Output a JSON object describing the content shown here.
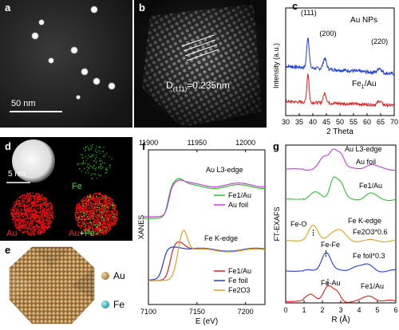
{
  "panels": {
    "a": {
      "label": "a",
      "scale": "50 nm"
    },
    "b": {
      "label": "b",
      "annotation_main": "D",
      "annotation_sub": "(111)",
      "annotation_value": "=0.235nm"
    },
    "c": {
      "label": "c"
    },
    "d": {
      "label": "d",
      "scale": "5 nm",
      "fe": "Fe",
      "au": "Au",
      "au_fe_prefix": "Au",
      "au_fe_plus": "+",
      "au_fe_suffix": "Fe"
    },
    "e": {
      "label": "e",
      "legend_au": "Au",
      "legend_fe": "Fe"
    },
    "f": {
      "label": "f"
    },
    "g": {
      "label": "g"
    }
  },
  "colors": {
    "blue": "#1f3fd6",
    "red": "#e01f1f",
    "green": "#33c033",
    "magenta": "#c040d8",
    "orange": "#e0a020",
    "gold": "#c8a060",
    "teal": "#40b8c0"
  },
  "chart_data": [
    {
      "id": "c",
      "type": "line",
      "xlabel": "2 Theta",
      "ylabel": "Intensity (a.u.)",
      "xlim": [
        30,
        70
      ],
      "xticks": [
        "30",
        "35",
        "40",
        "45",
        "50",
        "55",
        "60",
        "65",
        "70"
      ],
      "peak_labels": [
        "(111)",
        "(200)",
        "(220)"
      ],
      "peak_positions": [
        38.2,
        44.4,
        64.6
      ],
      "series": [
        {
          "name": "Au NPs",
          "color": "#1f3fd6"
        },
        {
          "name": "Fe1/Au",
          "name_main": "Fe",
          "name_sub": "1",
          "name_suffix": "/Au",
          "color": "#e01f1f"
        }
      ]
    },
    {
      "id": "f",
      "type": "line",
      "ylabel": "XANES",
      "xlabel": "E (eV)",
      "top_axis": {
        "xlim": [
          11900,
          12020
        ],
        "ticks": [
          "11900",
          "11950",
          "12000"
        ],
        "tick_values": [
          11900,
          11950,
          12000
        ]
      },
      "bottom_axis": {
        "xlim": [
          7100,
          7220
        ],
        "ticks": [
          "7100",
          "7150",
          "7200"
        ],
        "tick_values": [
          7100,
          7150,
          7200
        ]
      },
      "annotations": [
        "Au L3-edge",
        "Fe K-edge"
      ],
      "au_series": [
        {
          "name": "Fe1/Au",
          "color": "#33c033"
        },
        {
          "name": "Au foil",
          "color": "#c040d8"
        }
      ],
      "fe_series": [
        {
          "name": "Fe1/Au",
          "color": "#e01f1f"
        },
        {
          "name": "Fe foil",
          "color": "#1f3fd6"
        },
        {
          "name": "Fe2O3",
          "color": "#e0a020"
        }
      ]
    },
    {
      "id": "g",
      "type": "line",
      "ylabel": "FT-EXAFS",
      "xlabel": "R (Å)",
      "xlim": [
        0,
        6
      ],
      "xticks": [
        "0",
        "1",
        "2",
        "3",
        "4",
        "5",
        "6"
      ],
      "annotations": [
        "Au L3-edge",
        "Fe K-edge",
        "Fe-O",
        "Fe-Fe",
        "Fe-Au"
      ],
      "series": [
        {
          "name": "Au foil",
          "color": "#c040d8"
        },
        {
          "name": "Fe1/Au",
          "color": "#33c033"
        },
        {
          "name": "Fe2O3*0.6",
          "color": "#e0a020"
        },
        {
          "name": "Fe foil*0.3",
          "color": "#1f3fd6"
        },
        {
          "name": "Fe1/Au",
          "color": "#e01f1f"
        }
      ]
    }
  ]
}
